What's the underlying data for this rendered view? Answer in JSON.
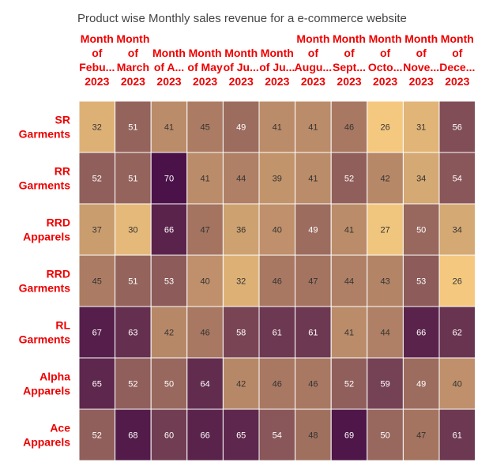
{
  "chart_data": {
    "type": "heatmap",
    "title": "Product wise Monthly sales revenue for a e-commerce website",
    "columns": [
      [
        "Month",
        "of",
        "Febu...",
        "2023"
      ],
      [
        "Month",
        "of",
        "March",
        "2023"
      ],
      [
        "Month",
        "of A...",
        "2023"
      ],
      [
        "Month",
        "of May",
        "2023"
      ],
      [
        "Month",
        "of Ju...",
        "2023"
      ],
      [
        "Month",
        "of Ju...",
        "2023"
      ],
      [
        "Month",
        "of",
        "Augu...",
        "2023"
      ],
      [
        "Month",
        "of",
        "Sept...",
        "2023"
      ],
      [
        "Month",
        "of",
        "Octo...",
        "2023"
      ],
      [
        "Month",
        "of",
        "Nove...",
        "2023"
      ],
      [
        "Month",
        "of",
        "Dece...",
        "2023"
      ]
    ],
    "rows": [
      [
        "SR",
        "Garments"
      ],
      [
        "RR",
        "Garments"
      ],
      [
        "RRD",
        "Apparels"
      ],
      [
        "RRD",
        "Garments"
      ],
      [
        "RL",
        "Garments"
      ],
      [
        "Alpha",
        "Apparels"
      ],
      [
        "Ace",
        "Apparels"
      ]
    ],
    "values": [
      [
        32,
        51,
        41,
        45,
        49,
        41,
        41,
        46,
        26,
        31,
        56
      ],
      [
        52,
        51,
        70,
        41,
        44,
        39,
        41,
        52,
        42,
        34,
        54
      ],
      [
        37,
        30,
        66,
        47,
        36,
        40,
        49,
        41,
        27,
        50,
        34
      ],
      [
        45,
        51,
        53,
        40,
        32,
        46,
        47,
        44,
        43,
        53,
        26
      ],
      [
        67,
        63,
        42,
        46,
        58,
        61,
        61,
        41,
        44,
        66,
        62
      ],
      [
        65,
        52,
        50,
        64,
        42,
        46,
        46,
        52,
        59,
        49,
        40
      ],
      [
        52,
        68,
        60,
        66,
        65,
        54,
        48,
        69,
        50,
        47,
        61
      ]
    ],
    "color_scale": {
      "min": 26,
      "max": 70,
      "low_color": "#F4C97F",
      "mid_color": "#A0705F",
      "high_color": "#4A1248"
    }
  }
}
